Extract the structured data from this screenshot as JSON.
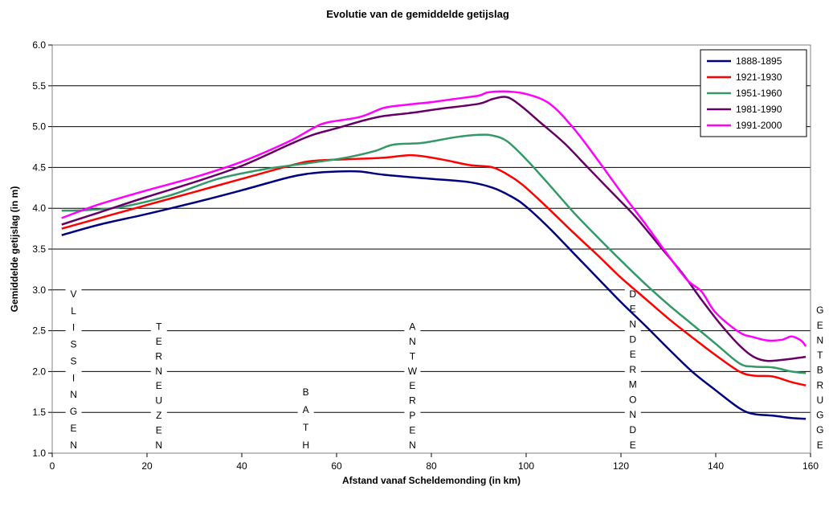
{
  "chart_data": {
    "type": "line",
    "title": "Evolutie van de gemiddelde getijslag",
    "xlabel": "Afstand vanaf Scheldemonding (in km)",
    "ylabel": "Gemiddelde getijslag (in m)",
    "xlim": [
      0,
      160
    ],
    "ylim": [
      1.0,
      6.0
    ],
    "x_ticks": [
      "0",
      "20",
      "40",
      "60",
      "80",
      "100",
      "120",
      "140",
      "160"
    ],
    "y_ticks": [
      "1.0",
      "1.5",
      "2.0",
      "2.5",
      "3.0",
      "3.5",
      "4.0",
      "4.5",
      "5.0",
      "5.5",
      "6.0"
    ],
    "grid": "horizontal",
    "legend_position": "top-right",
    "places": [
      {
        "name": "VLISSINGEN",
        "km": 4.5,
        "y_top": 2.95,
        "y_bottom": 1.1
      },
      {
        "name": "TERNEUZEN",
        "km": 22.5,
        "y_top": 2.55,
        "y_bottom": 1.1
      },
      {
        "name": "BATH",
        "km": 53.5,
        "y_top": 1.75,
        "y_bottom": 1.1
      },
      {
        "name": "ANTWERPEN",
        "km": 76,
        "y_top": 2.55,
        "y_bottom": 1.1
      },
      {
        "name": "DENDERMONDE",
        "km": 122.5,
        "y_top": 2.95,
        "y_bottom": 1.1
      },
      {
        "name": "GENTBRUGGE",
        "km": 162,
        "y_top": 2.75,
        "y_bottom": 1.1
      }
    ],
    "series": [
      {
        "name": "1888-1895",
        "color": "#00007f",
        "points": [
          [
            2,
            3.67
          ],
          [
            10,
            3.8
          ],
          [
            20,
            3.93
          ],
          [
            30,
            4.07
          ],
          [
            40,
            4.22
          ],
          [
            50,
            4.38
          ],
          [
            55,
            4.43
          ],
          [
            60,
            4.45
          ],
          [
            65,
            4.45
          ],
          [
            70,
            4.41
          ],
          [
            80,
            4.36
          ],
          [
            88,
            4.32
          ],
          [
            93,
            4.25
          ],
          [
            97,
            4.14
          ],
          [
            100,
            4.02
          ],
          [
            105,
            3.75
          ],
          [
            110,
            3.45
          ],
          [
            115,
            3.15
          ],
          [
            120,
            2.85
          ],
          [
            125,
            2.57
          ],
          [
            130,
            2.28
          ],
          [
            135,
            2.0
          ],
          [
            140,
            1.77
          ],
          [
            145,
            1.55
          ],
          [
            148,
            1.48
          ],
          [
            152,
            1.46
          ],
          [
            156,
            1.43
          ],
          [
            159,
            1.42
          ]
        ]
      },
      {
        "name": "1921-1930",
        "color": "#ff0000",
        "points": [
          [
            2,
            3.75
          ],
          [
            10,
            3.88
          ],
          [
            20,
            4.04
          ],
          [
            30,
            4.2
          ],
          [
            40,
            4.36
          ],
          [
            50,
            4.52
          ],
          [
            55,
            4.58
          ],
          [
            62,
            4.6
          ],
          [
            70,
            4.62
          ],
          [
            76,
            4.65
          ],
          [
            82,
            4.6
          ],
          [
            88,
            4.53
          ],
          [
            93,
            4.5
          ],
          [
            97,
            4.38
          ],
          [
            100,
            4.25
          ],
          [
            105,
            3.98
          ],
          [
            110,
            3.7
          ],
          [
            115,
            3.43
          ],
          [
            120,
            3.15
          ],
          [
            125,
            2.9
          ],
          [
            130,
            2.65
          ],
          [
            135,
            2.42
          ],
          [
            140,
            2.2
          ],
          [
            145,
            2.0
          ],
          [
            148,
            1.95
          ],
          [
            152,
            1.94
          ],
          [
            156,
            1.87
          ],
          [
            159,
            1.83
          ]
        ]
      },
      {
        "name": "1951-1960",
        "color": "#339966",
        "points": [
          [
            2,
            3.97
          ],
          [
            8,
            3.98
          ],
          [
            15,
            4.02
          ],
          [
            25,
            4.16
          ],
          [
            35,
            4.36
          ],
          [
            45,
            4.48
          ],
          [
            55,
            4.56
          ],
          [
            62,
            4.62
          ],
          [
            68,
            4.7
          ],
          [
            72,
            4.78
          ],
          [
            78,
            4.8
          ],
          [
            85,
            4.87
          ],
          [
            90,
            4.9
          ],
          [
            93,
            4.89
          ],
          [
            96,
            4.82
          ],
          [
            100,
            4.6
          ],
          [
            105,
            4.28
          ],
          [
            110,
            3.95
          ],
          [
            115,
            3.65
          ],
          [
            120,
            3.36
          ],
          [
            125,
            3.08
          ],
          [
            130,
            2.82
          ],
          [
            135,
            2.58
          ],
          [
            140,
            2.34
          ],
          [
            145,
            2.1
          ],
          [
            148,
            2.06
          ],
          [
            152,
            2.05
          ],
          [
            156,
            2.0
          ],
          [
            159,
            1.98
          ]
        ]
      },
      {
        "name": "1981-1990",
        "color": "#660066",
        "points": [
          [
            2,
            3.8
          ],
          [
            10,
            3.95
          ],
          [
            20,
            4.14
          ],
          [
            30,
            4.32
          ],
          [
            40,
            4.52
          ],
          [
            50,
            4.78
          ],
          [
            55,
            4.9
          ],
          [
            60,
            4.98
          ],
          [
            66,
            5.08
          ],
          [
            70,
            5.13
          ],
          [
            76,
            5.17
          ],
          [
            82,
            5.22
          ],
          [
            90,
            5.28
          ],
          [
            93,
            5.34
          ],
          [
            96,
            5.36
          ],
          [
            99,
            5.25
          ],
          [
            103,
            5.05
          ],
          [
            108,
            4.8
          ],
          [
            113,
            4.5
          ],
          [
            118,
            4.2
          ],
          [
            123,
            3.9
          ],
          [
            128,
            3.55
          ],
          [
            133,
            3.2
          ],
          [
            137,
            2.88
          ],
          [
            141,
            2.58
          ],
          [
            145,
            2.32
          ],
          [
            148,
            2.18
          ],
          [
            151,
            2.13
          ],
          [
            155,
            2.15
          ],
          [
            159,
            2.18
          ]
        ]
      },
      {
        "name": "1991-2000",
        "color": "#ff00ff",
        "points": [
          [
            2,
            3.88
          ],
          [
            10,
            4.05
          ],
          [
            20,
            4.22
          ],
          [
            30,
            4.38
          ],
          [
            40,
            4.57
          ],
          [
            50,
            4.82
          ],
          [
            55,
            4.98
          ],
          [
            58,
            5.05
          ],
          [
            65,
            5.12
          ],
          [
            70,
            5.23
          ],
          [
            75,
            5.27
          ],
          [
            80,
            5.3
          ],
          [
            85,
            5.34
          ],
          [
            90,
            5.38
          ],
          [
            92,
            5.42
          ],
          [
            96,
            5.43
          ],
          [
            100,
            5.4
          ],
          [
            105,
            5.28
          ],
          [
            110,
            4.98
          ],
          [
            115,
            4.6
          ],
          [
            120,
            4.2
          ],
          [
            125,
            3.82
          ],
          [
            130,
            3.42
          ],
          [
            134,
            3.12
          ],
          [
            137,
            2.98
          ],
          [
            140,
            2.72
          ],
          [
            145,
            2.48
          ],
          [
            148,
            2.42
          ],
          [
            151,
            2.38
          ],
          [
            154,
            2.39
          ],
          [
            156,
            2.43
          ],
          [
            158,
            2.38
          ],
          [
            159,
            2.31
          ]
        ]
      }
    ]
  }
}
